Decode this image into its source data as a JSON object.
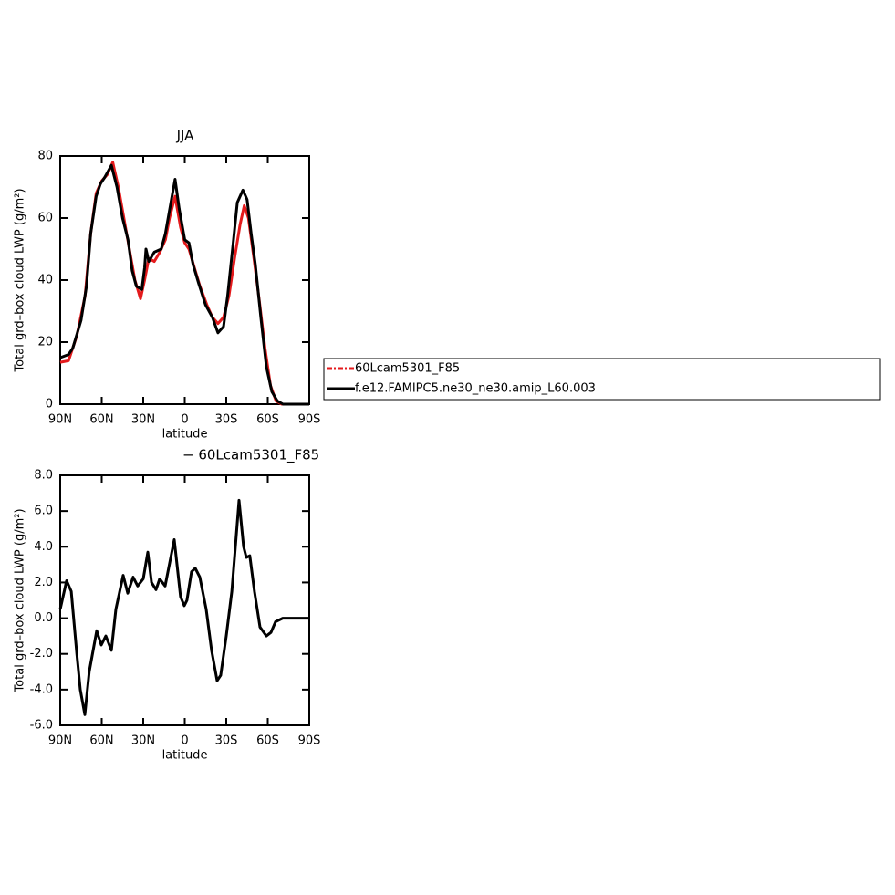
{
  "chart_data": [
    {
      "type": "line",
      "title": "JJA",
      "xlabel": "latitude",
      "ylabel": "Total grd–box cloud LWP (g/m²)",
      "xlim": [
        90,
        -90
      ],
      "ylim": [
        0,
        80
      ],
      "xticks": [
        {
          "value": 90,
          "label": "90N"
        },
        {
          "value": 60,
          "label": "60N"
        },
        {
          "value": 30,
          "label": "30N"
        },
        0,
        {
          "value": -30,
          "label": "30S"
        },
        {
          "value": -60,
          "label": "60S"
        },
        {
          "value": -90,
          "label": "90S"
        }
      ],
      "yticks": [
        0,
        20,
        40,
        60,
        80
      ],
      "legend": "right",
      "series": [
        {
          "name": "60Lcam5301_F85",
          "color": "#e41a1c",
          "x": [
            90,
            84,
            78,
            72,
            68,
            64,
            60,
            56,
            52,
            48,
            44,
            40,
            36,
            32,
            29,
            26,
            22,
            18,
            14,
            11,
            7,
            3,
            0,
            -3,
            -7,
            -11,
            -16,
            -20,
            -24,
            -28,
            -32,
            -36,
            -40,
            -43,
            -46,
            -50,
            -54,
            -58,
            -62,
            -66,
            -70,
            -90
          ],
          "values": [
            13.5,
            14,
            22,
            35,
            55,
            68,
            72,
            74,
            78,
            70,
            60,
            50,
            40,
            34,
            40,
            47,
            46,
            49,
            53,
            60,
            67,
            57,
            52,
            50,
            44,
            38,
            32,
            28,
            26,
            28,
            35,
            47,
            58,
            64,
            60,
            47,
            33,
            18,
            6,
            1,
            0,
            0
          ]
        },
        {
          "name": "f.e12.FAMIPC5.ne30_ne30.amip_L60.003",
          "color": "#000000",
          "x": [
            90,
            84,
            81,
            75,
            71,
            68,
            64,
            61,
            58,
            53,
            49,
            45,
            41,
            38,
            35,
            31,
            29,
            28,
            26,
            22,
            17,
            14,
            10,
            7,
            4,
            0,
            -3,
            -6,
            -10,
            -15,
            -20,
            -24,
            -28,
            -31,
            -35,
            -38,
            -42,
            -45,
            -48,
            -51,
            -55,
            -59,
            -63,
            -67,
            -71,
            -90
          ],
          "values": [
            15,
            16,
            18,
            27,
            38,
            55,
            67,
            71,
            73,
            77,
            70,
            60,
            53,
            43,
            38,
            37,
            44,
            50,
            46,
            49,
            50,
            55,
            65,
            72.5,
            63,
            53,
            52,
            45,
            39,
            32,
            28,
            23,
            25,
            35,
            52,
            65,
            69,
            66,
            55,
            45,
            28,
            12,
            4,
            1,
            0,
            0
          ]
        }
      ]
    },
    {
      "type": "line",
      "title": "− 60Lcam5301_F85",
      "xlabel": "latitude",
      "ylabel": "Total grd–box cloud LWP (g/m²)",
      "xlim": [
        90,
        -90
      ],
      "ylim": [
        -6,
        8
      ],
      "xticks": [
        {
          "value": 90,
          "label": "90N"
        },
        {
          "value": 60,
          "label": "60N"
        },
        {
          "value": 30,
          "label": "30N"
        },
        0,
        {
          "value": -30,
          "label": "30S"
        },
        {
          "value": -60,
          "label": "60S"
        },
        {
          "value": -90,
          "label": "90S"
        }
      ],
      "yticks": [
        {
          "value": -6,
          "label": "-6.0"
        },
        {
          "value": -4,
          "label": "-4.0"
        },
        {
          "value": -2,
          "label": "-2.0"
        },
        {
          "value": 0,
          "label": "0.0"
        },
        {
          "value": 2,
          "label": "2.0"
        },
        {
          "value": 4,
          "label": "4.0"
        },
        {
          "value": 6,
          "label": "6.0"
        },
        {
          "value": 8,
          "label": "8.0"
        }
      ],
      "series": [
        {
          "color": "#000000",
          "x": [
            90,
            85.4,
            82,
            78,
            75.5,
            72.2,
            69,
            63.6,
            60.3,
            57,
            53,
            49.8,
            44.5,
            41.2,
            37.3,
            34,
            30,
            26.7,
            24,
            20.8,
            18.1,
            14.2,
            7.6,
            3,
            0.3,
            -1.6,
            -4.9,
            -7.6,
            -10.9,
            -15.5,
            -19.4,
            -23.4,
            -26,
            -30,
            -34,
            -36.6,
            -39.2,
            -42.5,
            -44.5,
            -47,
            -50.4,
            -54.4,
            -59,
            -62.3,
            -65.6,
            -70.8,
            -90
          ],
          "values": [
            0.5,
            2.1,
            1.5,
            -2,
            -4,
            -5.4,
            -3,
            -0.7,
            -1.5,
            -1,
            -1.8,
            0.5,
            2.4,
            1.4,
            2.3,
            1.8,
            2.2,
            3.7,
            2,
            1.6,
            2.2,
            1.8,
            4.4,
            1.2,
            0.7,
            1,
            2.6,
            2.8,
            2.3,
            0.5,
            -1.8,
            -3.5,
            -3.2,
            -1,
            1.5,
            4,
            6.6,
            4,
            3.4,
            3.5,
            1.5,
            -0.5,
            -1,
            -0.8,
            -0.2,
            0,
            0
          ]
        }
      ]
    }
  ]
}
